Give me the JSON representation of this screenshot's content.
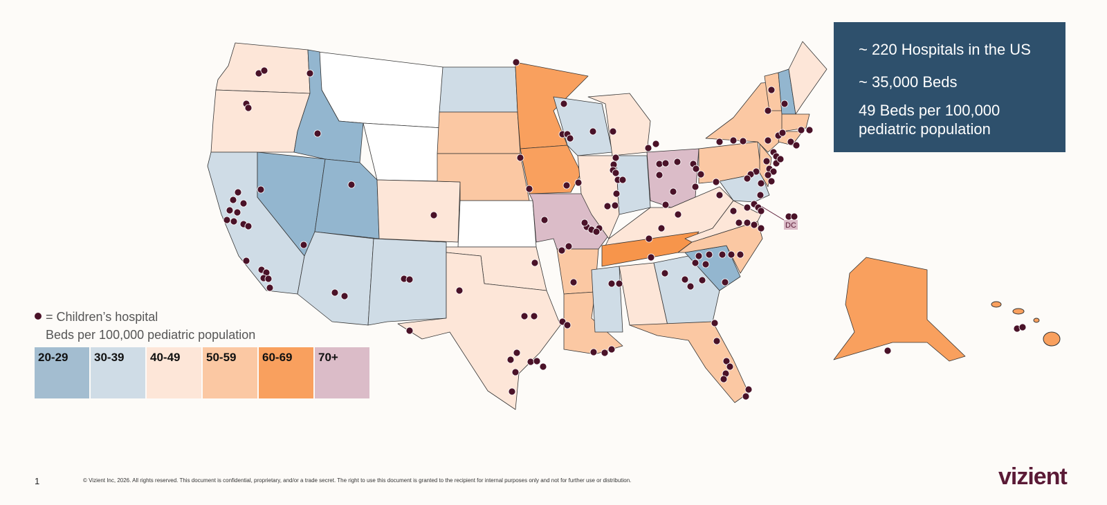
{
  "info": {
    "lines": [
      "~ 220 Hospitals in the US",
      "~ 35,000 Beds",
      "49 Beds per 100,000 pediatric population"
    ]
  },
  "map": {
    "dc_label": "DC"
  },
  "legend": {
    "marker_label": "= Children’s hospital",
    "title": "Beds per 100,000 pediatric population",
    "items": [
      {
        "label": "20-29",
        "color": "#a3bdd0"
      },
      {
        "label": "30-39",
        "color": "#cfdce6"
      },
      {
        "label": "40-49",
        "color": "#fde6d8"
      },
      {
        "label": "50-59",
        "color": "#fbc8a3"
      },
      {
        "label": "60-69",
        "color": "#f9a05e"
      },
      {
        "label": "70+",
        "color": "#dbbcc8"
      }
    ]
  },
  "footer": {
    "page": "1",
    "text": "© Vizient Inc, 2026. All rights reserved. This document is confidential, proprietary, and/or a trade secret. The right to use this document is granted to the recipient for internal purposes only and not for further use or distribution.",
    "logo": "vizient"
  }
}
